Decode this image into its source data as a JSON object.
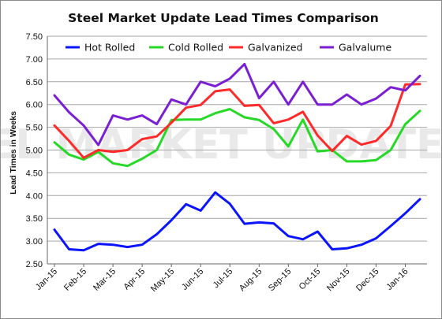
{
  "chart_data": {
    "type": "line",
    "title": "Steel Market Update Lead Times Comparison",
    "ylabel": "Lead Times in Weeks",
    "xlabel": "",
    "ylim": [
      2.5,
      7.5
    ],
    "yticks": [
      "2.50",
      "3.00",
      "3.50",
      "4.00",
      "4.50",
      "5.00",
      "5.50",
      "6.00",
      "6.50",
      "7.00",
      "7.50"
    ],
    "grid": true,
    "legend_position": "top",
    "tick_labels": [
      "Jan-15",
      "Feb-15",
      "Mar-15",
      "Apr-15",
      "May-15",
      "Jun-15",
      "Jul-15",
      "Aug-15",
      "Sep-15",
      "Oct-15",
      "Nov-15",
      "Dec-15",
      "Jan-16"
    ],
    "points_per_tick": 2,
    "watermark": "STEEL MARKET UPDATE",
    "series": [
      {
        "name": "Hot Rolled",
        "color": "#0a14ff",
        "values": [
          3.25,
          2.82,
          2.8,
          2.94,
          2.92,
          2.87,
          2.92,
          3.15,
          3.46,
          3.81,
          3.67,
          4.07,
          3.82,
          3.38,
          3.41,
          3.39,
          3.11,
          3.04,
          3.21,
          2.82,
          2.84,
          2.92,
          3.06,
          3.33,
          3.61,
          3.92
        ]
      },
      {
        "name": "Cold Rolled",
        "color": "#27d927",
        "values": [
          5.17,
          4.9,
          4.79,
          4.96,
          4.71,
          4.65,
          4.81,
          5.0,
          5.66,
          5.67,
          5.67,
          5.81,
          5.9,
          5.72,
          5.66,
          5.46,
          5.08,
          5.67,
          4.97,
          5.0,
          4.75,
          4.75,
          4.78,
          5.0,
          5.57,
          5.86
        ]
      },
      {
        "name": "Galvanized",
        "color": "#ff2a2a",
        "values": [
          5.54,
          5.2,
          4.83,
          5.0,
          4.96,
          5.0,
          5.24,
          5.3,
          5.6,
          5.93,
          5.99,
          6.29,
          6.33,
          5.97,
          5.99,
          5.59,
          5.67,
          5.84,
          5.32,
          4.98,
          5.31,
          5.12,
          5.2,
          5.53,
          6.44,
          6.45
        ]
      },
      {
        "name": "Galvalume",
        "color": "#7a1fd4",
        "values": [
          6.2,
          5.83,
          5.54,
          5.11,
          5.76,
          5.67,
          5.76,
          5.57,
          6.11,
          6.0,
          6.5,
          6.4,
          6.57,
          6.89,
          6.14,
          6.5,
          6.0,
          6.5,
          6.0,
          6.0,
          6.22,
          6.0,
          6.13,
          6.38,
          6.31,
          6.63
        ]
      }
    ]
  }
}
